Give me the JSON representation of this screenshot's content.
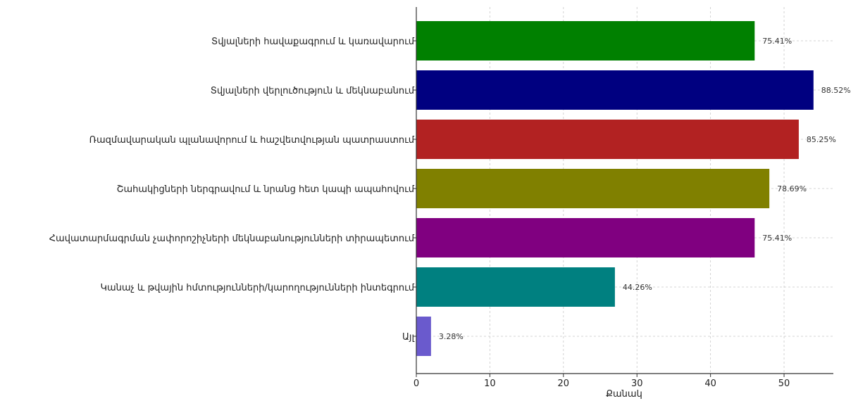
{
  "chart_data": {
    "type": "bar",
    "orientation": "horizontal",
    "categories": [
      "Տվյալների հավաքագրում և կառավարում",
      "Տվյալների վերլուծություն և մեկնաբանում",
      "Ռազմավարական պլանավորում և հաշվետվության պատրաստում",
      "Շահակիցների ներգրավում  և նրանց հետ կապի ապահովում",
      "Հավատարմագրման չափորոշիչների մեկնաբանությունների տիրապետում",
      "Կանաչ և թվային հմտությունների/կարողությունների ինտեգրում",
      "Այլ"
    ],
    "values": [
      46,
      54,
      52,
      48,
      46,
      27,
      2
    ],
    "data_labels": [
      "75.41%",
      "88.52%",
      "85.25%",
      "78.69%",
      "75.41%",
      "44.26%",
      "3.28%"
    ],
    "colors": [
      "#008000",
      "#000080",
      "#b22222",
      "#808000",
      "#800080",
      "#008080",
      "#6a5acd"
    ],
    "xlabel": "Քանակ",
    "ylabel": "",
    "xlim": [
      0,
      56.7
    ],
    "xticks": [
      0,
      10,
      20,
      30,
      40,
      50
    ],
    "grid": true
  }
}
